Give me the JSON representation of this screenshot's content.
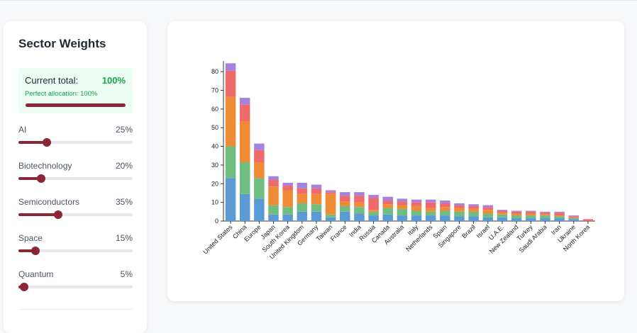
{
  "sidebar": {
    "title": "Sector Weights",
    "total": {
      "label": "Current total:",
      "value": "100%",
      "message": "Perfect allocation: 100%",
      "fraction": 1.0
    },
    "sliders": [
      {
        "label": "AI",
        "value": "25%",
        "fraction": 0.25
      },
      {
        "label": "Biotechnology",
        "value": "20%",
        "fraction": 0.2
      },
      {
        "label": "Semiconductors",
        "value": "35%",
        "fraction": 0.35
      },
      {
        "label": "Space",
        "value": "15%",
        "fraction": 0.15
      },
      {
        "label": "Quantum",
        "value": "5%",
        "fraction": 0.05
      }
    ]
  },
  "colors": {
    "accent": "#8b2635",
    "success": "#16a34a",
    "series": [
      "#5b9bd5",
      "#70bd80",
      "#ef8a35",
      "#ef6b6b",
      "#a682e0"
    ]
  },
  "chart_data": {
    "type": "bar",
    "stacked": true,
    "categories": [
      "United States",
      "China",
      "Europe",
      "Japan",
      "South Korea",
      "United Kingdom",
      "Germany",
      "Taiwan",
      "France",
      "India",
      "Russia",
      "Canada",
      "Australia",
      "Italy",
      "Netherlands",
      "Spain",
      "Singapore",
      "Brazil",
      "Israel",
      "U.A.E.",
      "New Zealand",
      "Turkey",
      "Saudi Arabia",
      "Iran",
      "Ukraine",
      "North Korea"
    ],
    "series": [
      {
        "values": [
          23,
          14.5,
          12,
          3.5,
          3.5,
          5,
          5,
          2,
          5,
          4,
          3,
          3.5,
          3,
          3,
          3,
          3,
          2.5,
          2.5,
          2,
          2,
          1.5,
          1.5,
          1.5,
          1.5,
          1,
          0
        ]
      },
      {
        "values": [
          17,
          17,
          11,
          5,
          4,
          4.5,
          4,
          1.5,
          3,
          3.5,
          2,
          3.5,
          3.5,
          2.5,
          2,
          2.5,
          2.5,
          2.5,
          2,
          1.5,
          1.5,
          1.5,
          1.5,
          1,
          0.5,
          0
        ]
      },
      {
        "values": [
          26.5,
          22,
          8.5,
          10,
          9,
          5,
          5.5,
          11,
          2.5,
          2.5,
          1,
          2,
          2,
          2.5,
          2,
          2,
          2,
          1.5,
          2,
          1,
          1,
          1,
          0.5,
          0.5,
          0.5,
          0
        ]
      },
      {
        "values": [
          14,
          9,
          6.5,
          3.5,
          2.5,
          3,
          3,
          1,
          3,
          3.5,
          6.5,
          2,
          2,
          2,
          3,
          2,
          1.5,
          1.5,
          1.5,
          1,
          1,
          1,
          1,
          1.5,
          0.5,
          1
        ]
      },
      {
        "values": [
          4,
          3.5,
          3.5,
          2,
          1.5,
          3,
          2,
          1,
          2,
          2,
          1.5,
          2,
          1.5,
          1.5,
          1.5,
          1.5,
          1,
          1,
          1,
          0.5,
          0.5,
          0.5,
          0.5,
          0.5,
          0.5,
          0
        ]
      }
    ],
    "ylim": [
      0,
      85
    ],
    "yticks": [
      0,
      10,
      20,
      30,
      40,
      50,
      60,
      70,
      80
    ],
    "grid": false,
    "title": "",
    "xlabel": "",
    "ylabel": ""
  }
}
